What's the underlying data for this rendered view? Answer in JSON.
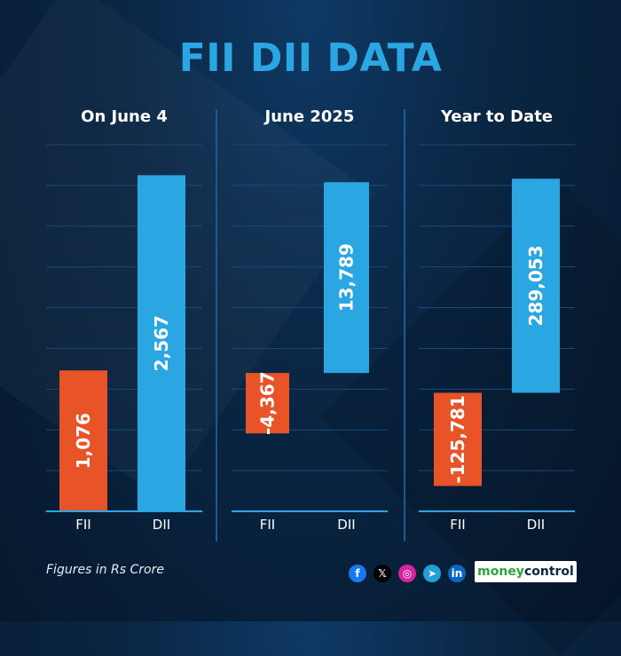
{
  "title": "FII DII DATA",
  "chart_data": [
    {
      "type": "bar",
      "title": "On June 4",
      "categories": [
        "FII",
        "DII"
      ],
      "values": [
        1076,
        2567
      ],
      "labels": [
        "1,076",
        "2,567"
      ],
      "colors": [
        "#e85427",
        "#2aa6e3"
      ],
      "ylim": [
        0,
        2800
      ]
    },
    {
      "type": "bar",
      "title": "June 2025",
      "categories": [
        "FII",
        "DII"
      ],
      "values": [
        -4367,
        13789
      ],
      "labels": [
        "-4,367",
        "13,789"
      ],
      "colors": [
        "#e85427",
        "#2aa6e3"
      ],
      "ylim": [
        -10000,
        16500
      ]
    },
    {
      "type": "bar",
      "title": "Year to Date",
      "categories": [
        "FII",
        "DII"
      ],
      "values": [
        -125781,
        289053
      ],
      "labels": [
        "-125,781",
        "289,053"
      ],
      "colors": [
        "#e85427",
        "#2aa6e3"
      ],
      "ylim": [
        -160000,
        335000
      ]
    }
  ],
  "footer": {
    "note": "Figures in Rs Crore",
    "social_icons": [
      "facebook-icon",
      "x-icon",
      "instagram-icon",
      "telegram-icon",
      "linkedin-icon"
    ],
    "social_glyphs": [
      "f",
      "𝕏",
      "◎",
      "➤",
      "in"
    ],
    "brand_part1": "money",
    "brand_part2": "control"
  }
}
